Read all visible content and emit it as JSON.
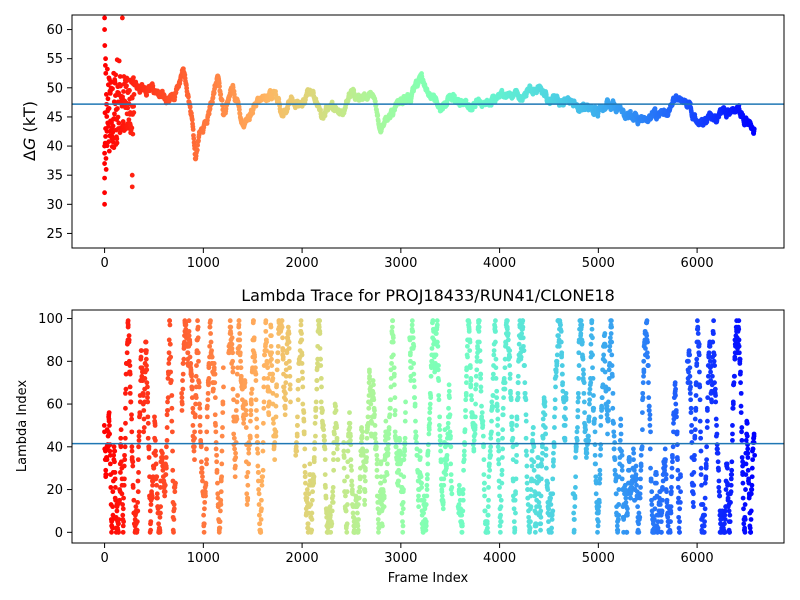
{
  "chart_data": [
    {
      "type": "scatter",
      "title": "",
      "xlabel": "",
      "ylabel": "ΔG (kT)",
      "ylabel_parts": {
        "delta": "Δ",
        "var": "G",
        "unit": " (kT)"
      },
      "xlim": [
        -330,
        6880
      ],
      "ylim": [
        22.5,
        62.5
      ],
      "xticks": [
        0,
        1000,
        2000,
        3000,
        4000,
        5000,
        6000
      ],
      "yticks": [
        25,
        30,
        35,
        40,
        45,
        50,
        55,
        60
      ],
      "hline": 47.2,
      "hline_color": "#1f77b4",
      "colormap": "rainbow (red at frame 0 → violet at last frame)",
      "x_max_frame": 6580,
      "trace_keypoints": [
        [
          300,
          51
        ],
        [
          500,
          49
        ],
        [
          700,
          48
        ],
        [
          800,
          53
        ],
        [
          880,
          45
        ],
        [
          920,
          37.5
        ],
        [
          960,
          42
        ],
        [
          1050,
          45
        ],
        [
          1150,
          52
        ],
        [
          1200,
          46
        ],
        [
          1300,
          50
        ],
        [
          1400,
          44
        ],
        [
          1500,
          46
        ],
        [
          1600,
          48
        ],
        [
          1700,
          49
        ],
        [
          1800,
          46
        ],
        [
          1900,
          48
        ],
        [
          2000,
          47
        ],
        [
          2100,
          50
        ],
        [
          2200,
          45
        ],
        [
          2300,
          47
        ],
        [
          2400,
          46
        ],
        [
          2500,
          49
        ],
        [
          2600,
          48
        ],
        [
          2700,
          49
        ],
        [
          2800,
          42.5
        ],
        [
          2900,
          46
        ],
        [
          3000,
          47.5
        ],
        [
          3100,
          48
        ],
        [
          3200,
          52
        ],
        [
          3300,
          49
        ],
        [
          3400,
          47
        ],
        [
          3500,
          48
        ],
        [
          3700,
          47
        ],
        [
          3900,
          47.5
        ],
        [
          4000,
          48.5
        ],
        [
          4200,
          49
        ],
        [
          4400,
          50
        ],
        [
          4500,
          48
        ],
        [
          4700,
          48
        ],
        [
          4800,
          46.5
        ],
        [
          5000,
          46
        ],
        [
          5100,
          47
        ],
        [
          5200,
          46.5
        ],
        [
          5400,
          44
        ],
        [
          5500,
          44.5
        ],
        [
          5700,
          46
        ],
        [
          5800,
          48
        ],
        [
          5900,
          47.5
        ],
        [
          6000,
          44.5
        ],
        [
          6200,
          45
        ],
        [
          6400,
          46.5
        ],
        [
          6500,
          44.5
        ],
        [
          6580,
          42.5
        ]
      ]
    },
    {
      "type": "scatter",
      "title": "Lambda Trace for PROJ18433/RUN41/CLONE18",
      "xlabel": "Frame Index",
      "ylabel": "Lambda Index",
      "xlim": [
        -330,
        6880
      ],
      "ylim": [
        -5,
        104
      ],
      "xticks": [
        0,
        1000,
        2000,
        3000,
        4000,
        5000,
        6000
      ],
      "yticks": [
        0,
        20,
        40,
        60,
        80,
        100
      ],
      "hline": 41.5,
      "hline_color": "#1f77b4",
      "colormap": "rainbow (red at frame 0 → violet at last frame)",
      "x_max_frame": 6580,
      "lambda_range": [
        0,
        99
      ]
    }
  ]
}
